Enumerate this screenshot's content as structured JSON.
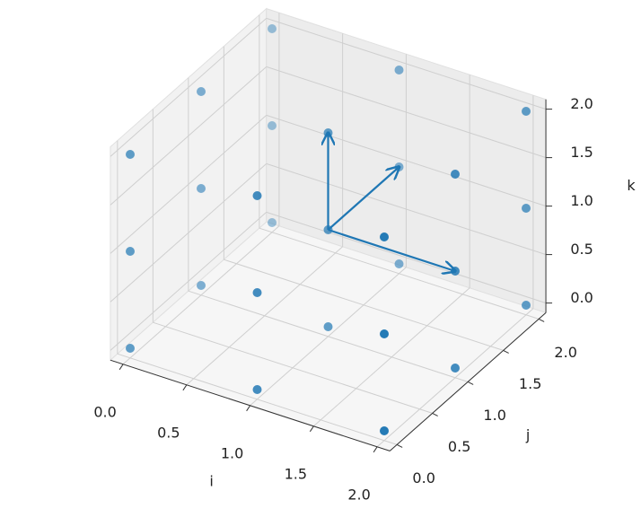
{
  "chart_data": {
    "type": "scatter3d",
    "xlabel": "i",
    "ylabel": "j",
    "zlabel": "k",
    "x": [
      0,
      0,
      0,
      0,
      0,
      0,
      0,
      0,
      0,
      1,
      1,
      1,
      1,
      1,
      1,
      1,
      1,
      1,
      2,
      2,
      2,
      2,
      2,
      2,
      2,
      2,
      2
    ],
    "y": [
      0,
      0,
      0,
      1,
      1,
      1,
      2,
      2,
      2,
      0,
      0,
      0,
      1,
      1,
      1,
      2,
      2,
      2,
      0,
      0,
      0,
      1,
      1,
      1,
      2,
      2,
      2
    ],
    "z": [
      0,
      1,
      2,
      0,
      1,
      2,
      0,
      1,
      2,
      0,
      1,
      2,
      0,
      1,
      2,
      0,
      1,
      2,
      0,
      1,
      2,
      0,
      1,
      2,
      0,
      1,
      2
    ],
    "color": "#1f77b4",
    "quiver": {
      "x": [
        1,
        1,
        1
      ],
      "y": [
        1,
        1,
        1
      ],
      "z": [
        1,
        1,
        1
      ],
      "u": [
        1,
        0,
        0
      ],
      "v": [
        0,
        1,
        0
      ],
      "w": [
        0,
        0,
        1
      ]
    },
    "xlim": [
      -0.1,
      2.1
    ],
    "ylim": [
      -0.1,
      2.1
    ],
    "zlim": [
      -0.1,
      2.1
    ],
    "xticks": [
      {
        "value": 0,
        "label": "0.0"
      },
      {
        "value": 0.5,
        "label": "0.5"
      },
      {
        "value": 1,
        "label": "1.0"
      },
      {
        "value": 1.5,
        "label": "1.5"
      },
      {
        "value": 2,
        "label": "2.0"
      }
    ],
    "yticks": [
      {
        "value": 0,
        "label": "0.0"
      },
      {
        "value": 0.5,
        "label": "0.5"
      },
      {
        "value": 1,
        "label": "1.0"
      },
      {
        "value": 1.5,
        "label": "1.5"
      },
      {
        "value": 2,
        "label": "2.0"
      }
    ],
    "zticks": [
      {
        "value": 0,
        "label": "0.0"
      },
      {
        "value": 0.5,
        "label": "0.5"
      },
      {
        "value": 1,
        "label": "1.0"
      },
      {
        "value": 1.5,
        "label": "1.5"
      },
      {
        "value": 2,
        "label": "2.0"
      }
    ],
    "grid": true
  }
}
